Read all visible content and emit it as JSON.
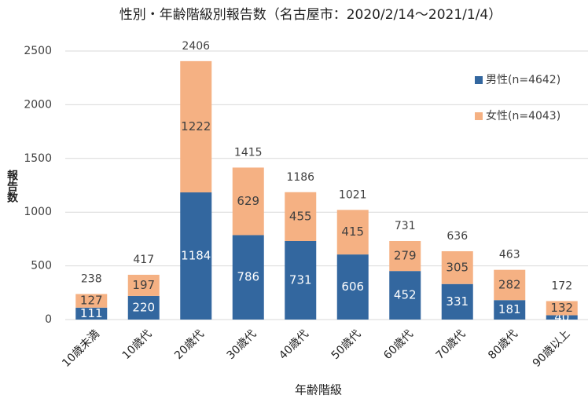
{
  "chart_data": {
    "type": "stacked_bar",
    "title": "性別・年齢階級別報告数（名古屋市：2020/2/14～2021/1/4）",
    "x_label": "年齢階級",
    "y_label": "報告数",
    "categories": [
      "10歳未満",
      "10歳代",
      "20歳代",
      "30歳代",
      "40歳代",
      "50歳代",
      "60歳代",
      "70歳代",
      "80歳代",
      "90歳以上"
    ],
    "series": [
      {
        "name": "男性(n=4642)",
        "color": "#33679f",
        "values": [
          111,
          220,
          1184,
          786,
          731,
          606,
          452,
          331,
          181,
          40
        ]
      },
      {
        "name": "女性(n=4043)",
        "color": "#f5b183",
        "values": [
          127,
          197,
          1222,
          629,
          455,
          415,
          279,
          305,
          282,
          132
        ]
      }
    ],
    "totals": [
      238,
      417,
      2406,
      1415,
      1186,
      1021,
      731,
      636,
      463,
      172
    ],
    "ylim": [
      0,
      2500
    ],
    "yticks": [
      0,
      500,
      1000,
      1500,
      2000,
      2500
    ],
    "grid": true,
    "legend": "upper right"
  }
}
